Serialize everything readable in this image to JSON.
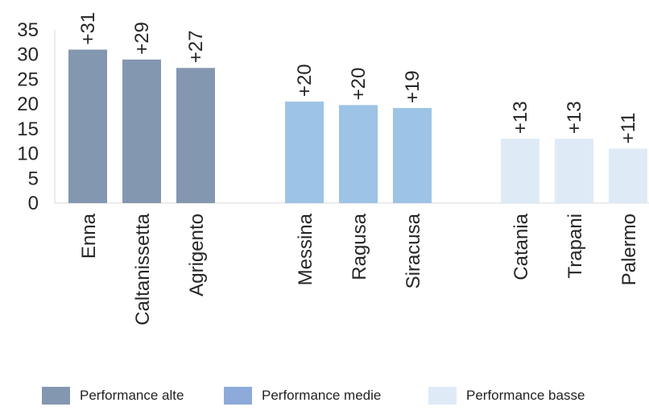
{
  "chart_data": {
    "type": "bar",
    "ylim": [
      0,
      35
    ],
    "yticks": [
      0,
      5,
      10,
      15,
      20,
      25,
      30,
      35
    ],
    "grid": false,
    "legend_position": "bottom",
    "categories": [
      "Enna",
      "Caltanissetta",
      "Agrigento",
      "Messina",
      "Ragusa",
      "Siracusa",
      "Catania",
      "Trapani",
      "Palermo"
    ],
    "values": [
      31,
      29,
      27.3,
      20.5,
      19.8,
      19.2,
      13,
      13,
      11
    ],
    "data_labels": [
      "+31",
      "+29",
      "+27",
      "+20",
      "+20",
      "+19",
      "+13",
      "+13",
      "+11"
    ],
    "groups": [
      0,
      0,
      0,
      1,
      1,
      1,
      2,
      2,
      2
    ],
    "series": [
      {
        "name": "Performance alte",
        "color": "#8497b0"
      },
      {
        "name": "Performance medie",
        "color": "#9dc3e6"
      },
      {
        "name": "Performance basse",
        "color": "#deebf7"
      }
    ],
    "legend_swatch_colors": [
      "#8497b0",
      "#8eaadb",
      "#deebf7"
    ]
  }
}
